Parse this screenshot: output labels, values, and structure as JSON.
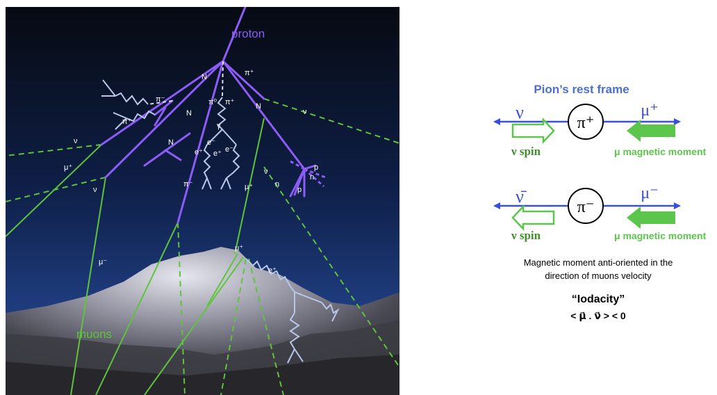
{
  "shower": {
    "proton_label": "proton",
    "muons_label": "muons",
    "labels": {
      "N1": "N",
      "N2": "N",
      "N3": "N",
      "N4": "N",
      "pi_plus_top": "π⁺",
      "pi_left": "π⁻",
      "pi_plus_left": "π⁺",
      "pi_zero": "π⁰",
      "pi_plus_mid": "π⁺",
      "gamma": "γ",
      "e_plus": "e⁺",
      "e_minus": "e⁻",
      "e_plus2": "e⁺",
      "e_minus2": "e⁻",
      "nu_right": "ν",
      "nu_left": "ν",
      "nu_left2": "ν",
      "nu_mid": "ν",
      "mu_plus_left": "μ⁺",
      "pi_minus_mid": "π⁻",
      "mu_plus_mid": "μ⁺",
      "mu_plus_low": "μ⁺",
      "mu_minus": "μ⁻",
      "e_plus_low": "e⁺",
      "p1": "p",
      "n1": "n",
      "n2": "n",
      "p2": "p"
    },
    "colors": {
      "hadron": "#8b5cf6",
      "muon": "#5fc43b",
      "em": "#b9c8e8"
    }
  },
  "rest_frame": {
    "title": "Pion’s rest frame",
    "pi_plus": {
      "nu": "ν",
      "pion": "π⁺",
      "mu": "μ⁺",
      "nu_spin": "ν spin",
      "mu_moment": "μ magnetic moment"
    },
    "pi_minus": {
      "nu": "ν̄",
      "pion": "π⁻",
      "mu": "μ⁻",
      "nu_spin": "ν spin",
      "mu_moment": "μ magnetic moment"
    },
    "caption_line1": "Magnetic moment anti-oriented in the",
    "caption_line2": "direction of muons velocity",
    "quote_title": "“Iodacity”",
    "formula": "< μ⃗ . ν⃗ > < 0",
    "colors": {
      "title": "#4a6fcf",
      "axis": "#3b4fd6",
      "green": "#5cc64c",
      "dark_green": "#3f8f2e"
    }
  }
}
